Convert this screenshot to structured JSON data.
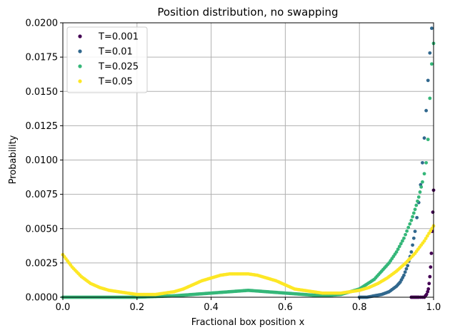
{
  "chart_data": {
    "type": "scatter",
    "title": "Position distribution, no swapping",
    "xlabel": "Fractional box position x",
    "ylabel": "Probability",
    "xlim": [
      0.0,
      1.0
    ],
    "ylim": [
      0.0,
      0.02
    ],
    "x_ticks": [
      "0.0",
      "0.2",
      "0.4",
      "0.6",
      "0.8",
      "1.0"
    ],
    "y_ticks": [
      "0.0000",
      "0.0025",
      "0.0050",
      "0.0075",
      "0.0100",
      "0.0125",
      "0.0150",
      "0.0175",
      "0.0200"
    ],
    "grid": true,
    "legend_position": "top-left",
    "series": [
      {
        "name": "T=0.001",
        "color": "#440154",
        "x": [
          0.94,
          0.95,
          0.96,
          0.965,
          0.97,
          0.975,
          0.978,
          0.981,
          0.984,
          0.986,
          0.988,
          0.99,
          0.992,
          0.994,
          0.996,
          0.998,
          1.0
        ],
        "y": [
          0.0,
          0.0,
          0.0,
          0.0,
          0.0,
          0.0,
          0.0001,
          0.0002,
          0.0004,
          0.0006,
          0.001,
          0.0015,
          0.0022,
          0.0032,
          0.0048,
          0.0062,
          0.0078
        ]
      },
      {
        "name": "T=0.01",
        "color": "#31688e",
        "x": [
          0.8,
          0.82,
          0.84,
          0.86,
          0.88,
          0.9,
          0.91,
          0.92,
          0.93,
          0.94,
          0.95,
          0.955,
          0.96,
          0.965,
          0.97,
          0.975,
          0.98,
          0.985,
          0.99,
          0.995
        ],
        "y": [
          0.0,
          0.0,
          0.0001,
          0.0002,
          0.0004,
          0.0008,
          0.0011,
          0.0016,
          0.0023,
          0.0033,
          0.0048,
          0.0058,
          0.0069,
          0.0082,
          0.0098,
          0.0116,
          0.0136,
          0.0158,
          0.0178,
          0.0196
        ]
      },
      {
        "name": "T=0.025",
        "color": "#35b779",
        "x": [
          0.0,
          0.1,
          0.2,
          0.3,
          0.35,
          0.4,
          0.45,
          0.5,
          0.55,
          0.6,
          0.65,
          0.7,
          0.75,
          0.8,
          0.84,
          0.88,
          0.9,
          0.92,
          0.94,
          0.95,
          0.96,
          0.97,
          0.975,
          0.98,
          0.985,
          0.99,
          0.995,
          1.0
        ],
        "y": [
          0.0,
          0.0,
          0.0,
          0.0001,
          0.0002,
          0.0003,
          0.0004,
          0.0005,
          0.0004,
          0.0003,
          0.0002,
          0.0001,
          0.0002,
          0.0006,
          0.0013,
          0.0025,
          0.0033,
          0.0043,
          0.0056,
          0.0064,
          0.0073,
          0.0084,
          0.009,
          0.0098,
          0.0115,
          0.0145,
          0.017,
          0.0185
        ]
      },
      {
        "name": "T=0.05",
        "color": "#fde725",
        "x": [
          0.0,
          0.025,
          0.05,
          0.075,
          0.1,
          0.125,
          0.15,
          0.175,
          0.2,
          0.225,
          0.25,
          0.275,
          0.3,
          0.325,
          0.35,
          0.375,
          0.4,
          0.425,
          0.45,
          0.475,
          0.5,
          0.525,
          0.55,
          0.575,
          0.6,
          0.625,
          0.65,
          0.675,
          0.7,
          0.725,
          0.75,
          0.775,
          0.8,
          0.825,
          0.85,
          0.875,
          0.9,
          0.925,
          0.95,
          0.975,
          1.0
        ],
        "y": [
          0.0031,
          0.0022,
          0.0015,
          0.001,
          0.0007,
          0.0005,
          0.0004,
          0.0003,
          0.0002,
          0.0002,
          0.0002,
          0.0003,
          0.0004,
          0.0006,
          0.0009,
          0.0012,
          0.0014,
          0.0016,
          0.0017,
          0.0017,
          0.0017,
          0.0016,
          0.0014,
          0.0012,
          0.0009,
          0.0006,
          0.0005,
          0.0004,
          0.0003,
          0.0003,
          0.0003,
          0.0004,
          0.0005,
          0.0007,
          0.001,
          0.0014,
          0.0019,
          0.0025,
          0.0032,
          0.0041,
          0.0052
        ]
      }
    ]
  }
}
